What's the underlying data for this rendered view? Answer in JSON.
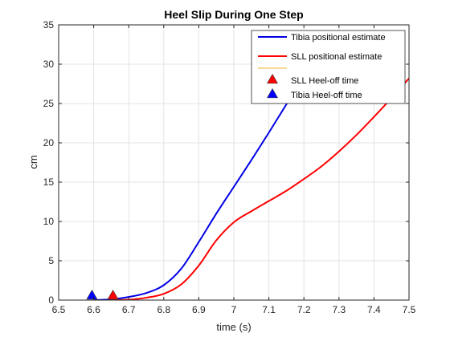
{
  "chart_data": {
    "type": "line",
    "title": "Heel Slip During One Step",
    "xlabel": "time (s)",
    "ylabel": "cm",
    "xlim": [
      6.5,
      7.5
    ],
    "ylim": [
      0,
      35
    ],
    "xticks": [
      "6.5",
      "6.6",
      "6.7",
      "6.8",
      "6.9",
      "7",
      "7.1",
      "7.2",
      "7.3",
      "7.4",
      "7.5"
    ],
    "yticks": [
      "0",
      "5",
      "10",
      "15",
      "20",
      "25",
      "30",
      "35"
    ],
    "grid": true,
    "legend_position": "top-right",
    "series": [
      {
        "name": "Tibia positional estimate",
        "color": "#0000e6",
        "style": "line",
        "x": [
          6.6,
          6.65,
          6.7,
          6.75,
          6.8,
          6.85,
          6.9,
          6.95,
          7.0,
          7.05,
          7.1,
          7.15,
          7.2
        ],
        "y": [
          0,
          0.1,
          0.4,
          0.9,
          1.9,
          4.0,
          7.4,
          11.0,
          14.4,
          17.8,
          21.3,
          24.9,
          28.5
        ]
      },
      {
        "name": "SLL positional estimate",
        "color": "#ff0000",
        "style": "line",
        "x": [
          6.65,
          6.7,
          6.75,
          6.8,
          6.85,
          6.9,
          6.95,
          7.0,
          7.05,
          7.1,
          7.15,
          7.2,
          7.25,
          7.3,
          7.35,
          7.4,
          7.45,
          7.5
        ],
        "y": [
          0,
          0.05,
          0.3,
          0.8,
          2.0,
          4.4,
          7.6,
          9.9,
          11.3,
          12.6,
          13.9,
          15.4,
          17.0,
          18.9,
          21.0,
          23.3,
          25.7,
          28.2
        ]
      },
      {
        "name": "",
        "color": "#edb120",
        "style": "line",
        "x": [],
        "y": []
      },
      {
        "name": "SLL Heel-off time",
        "color": "#ff0000",
        "style": "marker",
        "x": [
          6.655
        ],
        "y": [
          0.3
        ]
      },
      {
        "name": "Tibia Heel-off time",
        "color": "#0000ff",
        "style": "marker",
        "x": [
          6.595
        ],
        "y": [
          0.3
        ]
      }
    ]
  }
}
